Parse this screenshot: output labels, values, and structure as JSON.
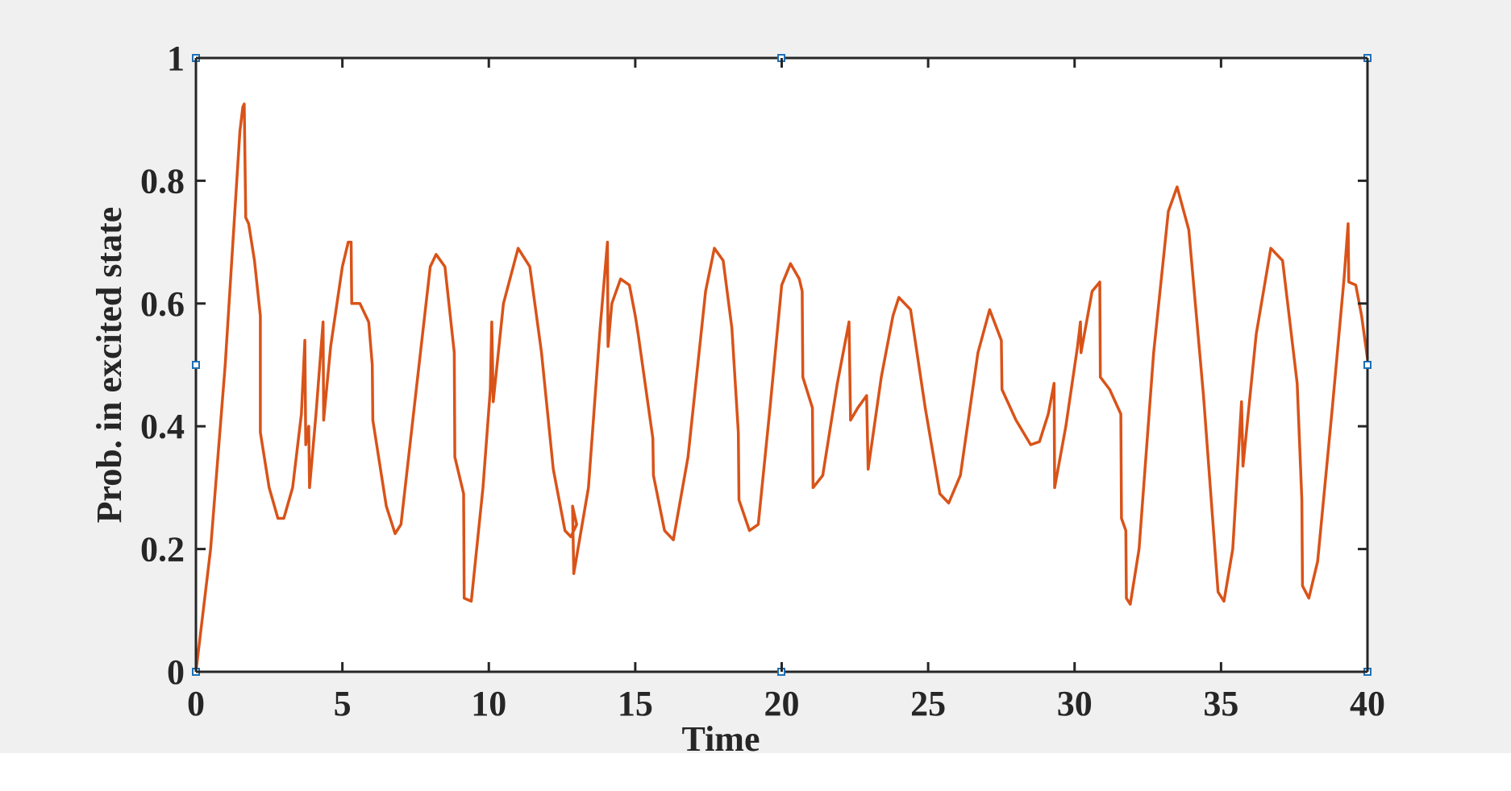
{
  "chart_data": {
    "type": "line",
    "xlabel": "Time",
    "ylabel": "Prob. in excited state",
    "color": "#d95319",
    "x": [
      0,
      0.5,
      1,
      1.5,
      1.6,
      1.65,
      1.7,
      1.8,
      2,
      2.2,
      2.2,
      2.2,
      2.5,
      2.8,
      3,
      3.3,
      3.6,
      3.72,
      3.75,
      3.85,
      3.88,
      4.1,
      4.34,
      4.36,
      4.6,
      5,
      5.2,
      5.3,
      5.32,
      5.6,
      5.9,
      6.02,
      6.04,
      6.5,
      6.8,
      7,
      7.5,
      8,
      8.2,
      8.5,
      8.82,
      8.84,
      9.14,
      9.16,
      9.4,
      9.8,
      10.05,
      10.1,
      10.15,
      10.5,
      11,
      11.4,
      11.8,
      12.2,
      12.6,
      12.8,
      13,
      12.86,
      12.9,
      13.4,
      13.8,
      14.05,
      14.07,
      14.2,
      14.5,
      14.8,
      15,
      15.1,
      15.6,
      15.62,
      16,
      16.3,
      16.8,
      17.4,
      17.7,
      18,
      18.3,
      18.52,
      18.54,
      18.9,
      19.2,
      19.6,
      20,
      20.3,
      20.6,
      20.7,
      20.72,
      21.05,
      21.07,
      21.4,
      21.9,
      22.3,
      22.35,
      22.6,
      22.9,
      22.95,
      23.4,
      23.8,
      24,
      24.4,
      24.9,
      25.4,
      25.7,
      26.1,
      26.7,
      27.1,
      27.5,
      27.52,
      28,
      28.5,
      28.8,
      29.1,
      29.3,
      29.32,
      29.7,
      30.1,
      30.2,
      30.22,
      30.6,
      30.86,
      30.88,
      31.2,
      31.58,
      31.6,
      31.75,
      31.77,
      31.9,
      32.2,
      32.7,
      33.2,
      33.5,
      33.9,
      34.4,
      34.9,
      35.1,
      35.4,
      35.7,
      35.75,
      36.2,
      36.7,
      37.1,
      37.6,
      37.76,
      37.78,
      38,
      38.3,
      38.8,
      39.2,
      39.34,
      39.36,
      39.6,
      39.8,
      40
    ],
    "values": [
      0,
      0.2,
      0.5,
      0.88,
      0.92,
      0.925,
      0.74,
      0.73,
      0.67,
      0.58,
      0.51,
      0.39,
      0.3,
      0.25,
      0.25,
      0.3,
      0.42,
      0.54,
      0.37,
      0.4,
      0.3,
      0.42,
      0.57,
      0.41,
      0.53,
      0.66,
      0.7,
      0.7,
      0.6,
      0.6,
      0.57,
      0.5,
      0.41,
      0.27,
      0.225,
      0.24,
      0.45,
      0.66,
      0.68,
      0.66,
      0.52,
      0.35,
      0.29,
      0.12,
      0.115,
      0.3,
      0.46,
      0.57,
      0.44,
      0.6,
      0.69,
      0.66,
      0.52,
      0.33,
      0.23,
      0.22,
      0.24,
      0.27,
      0.16,
      0.3,
      0.56,
      0.7,
      0.53,
      0.6,
      0.64,
      0.63,
      0.58,
      0.55,
      0.38,
      0.32,
      0.23,
      0.215,
      0.35,
      0.62,
      0.69,
      0.67,
      0.56,
      0.39,
      0.28,
      0.23,
      0.24,
      0.43,
      0.63,
      0.665,
      0.64,
      0.62,
      0.48,
      0.43,
      0.3,
      0.32,
      0.47,
      0.57,
      0.41,
      0.43,
      0.45,
      0.33,
      0.48,
      0.58,
      0.61,
      0.59,
      0.43,
      0.29,
      0.275,
      0.32,
      0.52,
      0.59,
      0.54,
      0.46,
      0.41,
      0.37,
      0.375,
      0.42,
      0.47,
      0.3,
      0.4,
      0.53,
      0.57,
      0.52,
      0.62,
      0.635,
      0.48,
      0.46,
      0.42,
      0.25,
      0.23,
      0.12,
      0.11,
      0.2,
      0.52,
      0.75,
      0.79,
      0.72,
      0.45,
      0.13,
      0.115,
      0.2,
      0.44,
      0.335,
      0.55,
      0.69,
      0.67,
      0.47,
      0.28,
      0.14,
      0.12,
      0.18,
      0.43,
      0.64,
      0.73,
      0.635,
      0.63,
      0.58,
      0.51
    ],
    "xlim": [
      0,
      40
    ],
    "xticks": [
      0,
      5,
      10,
      15,
      20,
      25,
      30,
      35,
      40
    ],
    "ylim": [
      0,
      1
    ],
    "yticks": [
      0,
      0.2,
      0.4,
      0.6,
      0.8,
      1
    ],
    "grid": false
  }
}
